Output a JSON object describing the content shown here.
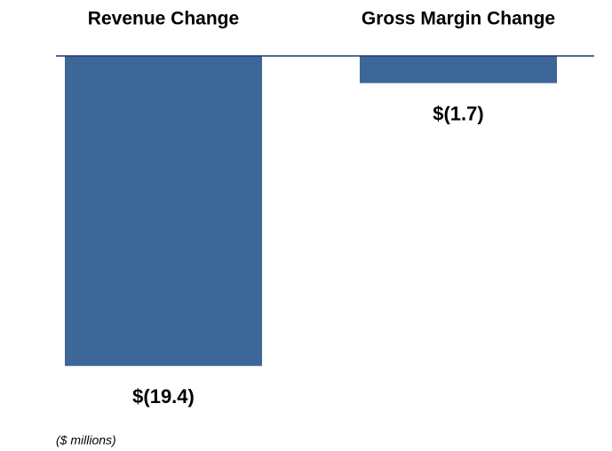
{
  "chart_data": {
    "type": "bar",
    "categories": [
      "Revenue Change",
      "Gross Margin Change"
    ],
    "values": [
      -19.4,
      -1.7
    ],
    "value_labels": [
      "$(19.4)",
      "$(1.7)"
    ],
    "color": "#3d6699",
    "axis_color": "#1f3a68",
    "ylim": [
      -20,
      0
    ],
    "note": "($ millions)"
  }
}
